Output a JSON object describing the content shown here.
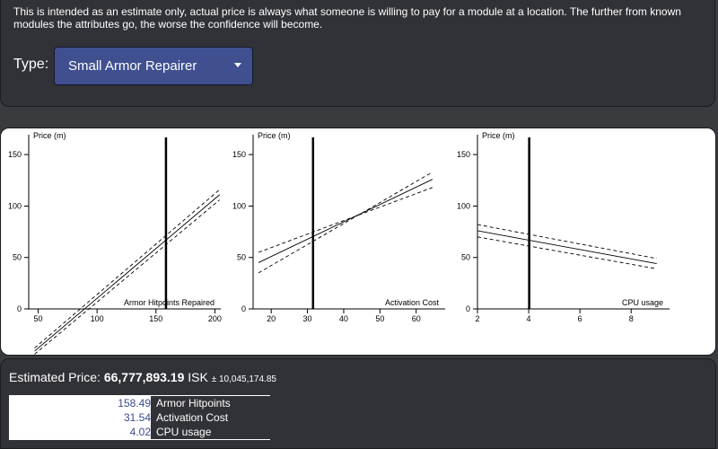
{
  "disclaimer": "This is intended as an estimate only, actual price is always what someone is willing to pay for a module at a location. The further from known modules the attributes go, the worse the confidence will become.",
  "type_label": "Type:",
  "type_select": {
    "value": "Small Armor Repairer"
  },
  "estimate": {
    "label": "Estimated Price:",
    "value": "66,777,893.19",
    "unit": "ISK",
    "uncertainty": "± 10,045,174.85"
  },
  "attributes": [
    {
      "value": "158.49",
      "name": "Armor Hitpoints Repaired"
    },
    {
      "value": "31.54",
      "name": "Activation Cost"
    },
    {
      "value": "4.02",
      "name": "CPU usage"
    }
  ],
  "chart_data": [
    {
      "type": "line",
      "ylabel": "Price (m)",
      "xlabel": "Armor Hitpoints Repaired",
      "xlim": [
        42,
        205
      ],
      "ylim": [
        0,
        165
      ],
      "xticks": [
        50,
        100,
        150,
        200
      ],
      "yticks": [
        0,
        50,
        100,
        150
      ],
      "marker_x": 158.49,
      "series": [
        {
          "x": [
            47,
            204
          ],
          "y": [
            -41,
            111
          ]
        },
        {
          "x": [
            47,
            204
          ],
          "y": [
            -38,
            116
          ]
        },
        {
          "x": [
            47,
            204
          ],
          "y": [
            -44,
            106
          ]
        }
      ]
    },
    {
      "type": "line",
      "ylabel": "Price (m)",
      "xlabel": "Activation Cost",
      "xlim": [
        15,
        68
      ],
      "ylim": [
        0,
        165
      ],
      "xticks": [
        20,
        30,
        40,
        50,
        60
      ],
      "yticks": [
        0,
        50,
        100,
        150
      ],
      "marker_x": 31.54,
      "series": [
        {
          "x": [
            16.5,
            64.5
          ],
          "y": [
            45,
            126
          ]
        },
        {
          "x": [
            16.5,
            64.5
          ],
          "y": [
            55,
            118
          ]
        },
        {
          "x": [
            16.5,
            64.5
          ],
          "y": [
            35,
            133
          ]
        }
      ]
    },
    {
      "type": "line",
      "ylabel": "Price (m)",
      "xlabel": "CPU usage",
      "xlim": [
        2,
        9.5
      ],
      "ylim": [
        0,
        165
      ],
      "xticks": [
        2,
        4,
        6,
        8
      ],
      "yticks": [
        0,
        50,
        100,
        150
      ],
      "marker_x": 4.02,
      "series": [
        {
          "x": [
            2,
            9
          ],
          "y": [
            76,
            44
          ]
        },
        {
          "x": [
            2,
            9
          ],
          "y": [
            82,
            49
          ]
        },
        {
          "x": [
            2,
            9
          ],
          "y": [
            70,
            39
          ]
        }
      ]
    }
  ]
}
